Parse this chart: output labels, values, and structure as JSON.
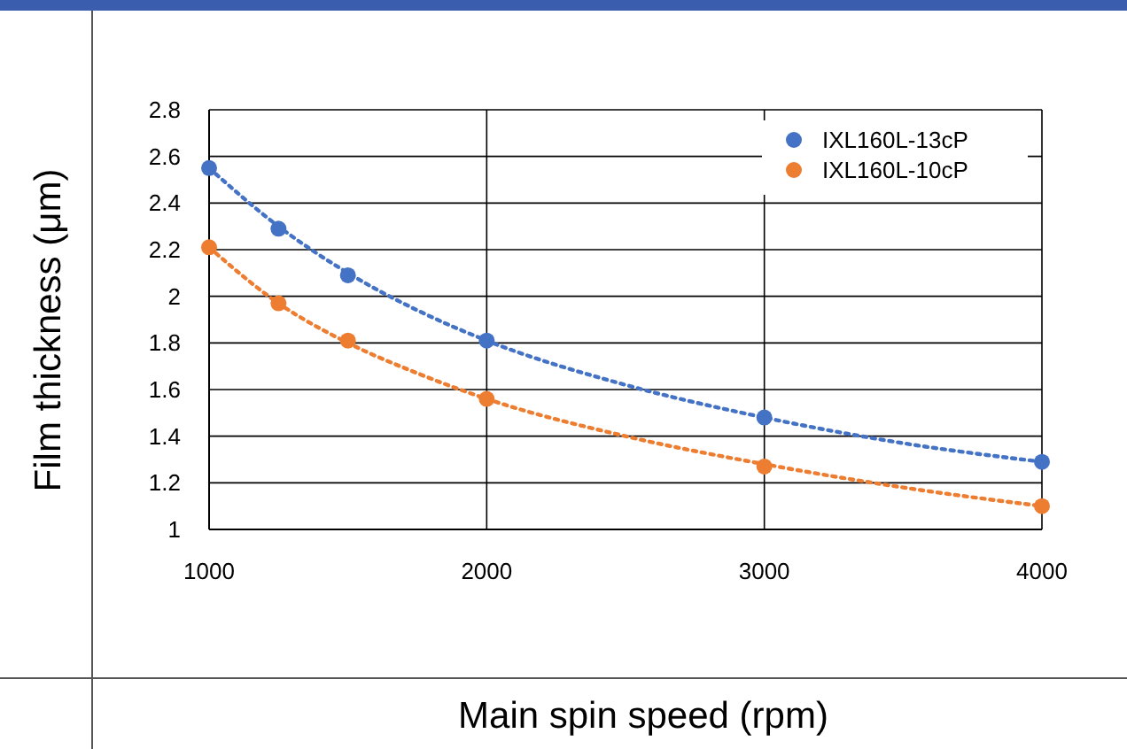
{
  "chart_data": {
    "type": "scatter",
    "xlabel": "Main spin speed (rpm)",
    "ylabel": "Film thickness (μm)",
    "xlim": [
      1000,
      4000
    ],
    "xticks": [
      1000,
      2000,
      3000,
      4000
    ],
    "ylim": [
      1,
      2.8
    ],
    "yticks": [
      {
        "value": 1,
        "label": "1"
      },
      {
        "value": 1.2,
        "label": "1.2"
      },
      {
        "value": 1.4,
        "label": "1.4"
      },
      {
        "value": 1.6,
        "label": "1.6"
      },
      {
        "value": 1.8,
        "label": "1.8"
      },
      {
        "value": 2,
        "label": "2"
      },
      {
        "value": 2.2,
        "label": "2.2"
      },
      {
        "value": 2.4,
        "label": "2.4"
      },
      {
        "value": 2.6,
        "label": "2.6"
      },
      {
        "value": 2.8,
        "label": "2.8"
      }
    ],
    "grid": true,
    "legend": "top right",
    "marker": "circle",
    "series": [
      {
        "name": "IXL160L-13cP",
        "color": "#4472c4",
        "x": [
          1000,
          1250,
          1500,
          2000,
          3000,
          4000
        ],
        "values": [
          2.55,
          2.29,
          2.09,
          1.81,
          1.48,
          1.29
        ]
      },
      {
        "name": "IXL160L-10cP",
        "color": "#ed7d31",
        "x": [
          1000,
          1250,
          1500,
          2000,
          3000,
          4000
        ],
        "values": [
          2.21,
          1.97,
          1.81,
          1.56,
          1.27,
          1.1
        ]
      },
      {
        "type": "line",
        "color": "#4472c4",
        "line_style": "dotted",
        "marker": "none",
        "x": [
          1000,
          1250,
          1500,
          1750,
          2000,
          2500,
          3000,
          3500,
          4000
        ],
        "values": [
          2.55,
          2.3,
          2.1,
          1.94,
          1.81,
          1.62,
          1.48,
          1.37,
          1.29
        ]
      },
      {
        "type": "line",
        "color": "#ed7d31",
        "line_style": "dotted",
        "marker": "none",
        "x": [
          1000,
          1250,
          1500,
          1750,
          2000,
          2500,
          3000,
          3500,
          4000
        ],
        "values": [
          2.21,
          1.97,
          1.8,
          1.67,
          1.56,
          1.4,
          1.28,
          1.18,
          1.1
        ]
      }
    ]
  }
}
